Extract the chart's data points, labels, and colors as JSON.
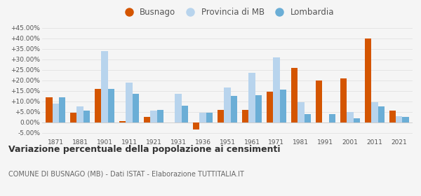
{
  "years": [
    1871,
    1881,
    1901,
    1911,
    1921,
    1931,
    1936,
    1951,
    1961,
    1971,
    1981,
    1991,
    2001,
    2011,
    2021
  ],
  "busnago": [
    11.8,
    4.8,
    16.0,
    0.8,
    2.8,
    0.0,
    -3.5,
    6.0,
    6.0,
    14.5,
    26.0,
    20.0,
    21.0,
    40.0,
    5.5
  ],
  "provincia_mb": [
    9.0,
    7.5,
    34.0,
    19.0,
    5.5,
    13.5,
    4.5,
    16.5,
    23.5,
    31.0,
    9.5,
    0.0,
    5.0,
    9.5,
    3.0
  ],
  "lombardia": [
    11.8,
    5.8,
    15.8,
    13.5,
    6.0,
    8.0,
    4.5,
    12.5,
    13.0,
    15.5,
    4.0,
    4.0,
    2.0,
    7.5,
    2.5
  ],
  "color_busnago": "#d45500",
  "color_provincia": "#b8d4ed",
  "color_lombardia": "#6baed6",
  "title": "Variazione percentuale della popolazione ai censimenti",
  "subtitle": "COMUNE DI BUSNAGO (MB) - Dati ISTAT - Elaborazione TUTTITALIA.IT",
  "ylim": [
    -7.0,
    47.0
  ],
  "yticks": [
    -5.0,
    0.0,
    5.0,
    10.0,
    15.0,
    20.0,
    25.0,
    30.0,
    35.0,
    40.0,
    45.0
  ],
  "bg_color": "#f5f5f5"
}
